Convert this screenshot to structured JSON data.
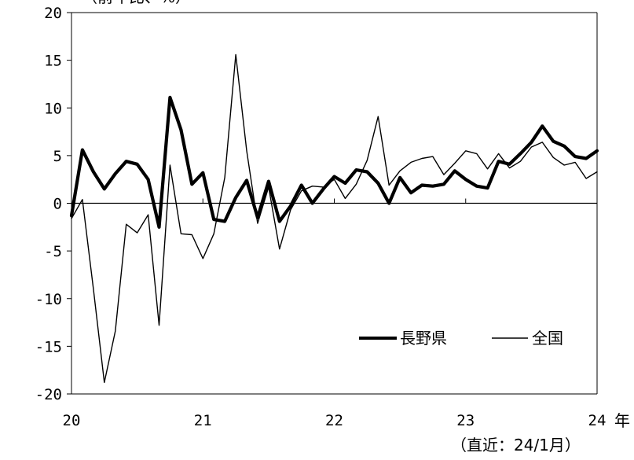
{
  "chart_data": {
    "type": "line",
    "ylabel": "（前年比、%）",
    "x_unit": "年",
    "note": "（直近：24/1月）",
    "ylim": [
      -20,
      20
    ],
    "yticks": [
      "20",
      "15",
      "10",
      "5",
      "0",
      "-5",
      "-10",
      "-15",
      "-20"
    ],
    "xticks": [
      "20",
      "21",
      "22",
      "23",
      "24"
    ],
    "legend_position": "lower-right",
    "series": [
      {
        "name": "長野県",
        "color": "#000000",
        "line_width": "thick",
        "values": [
          -1.3,
          5.6,
          3.3,
          1.5,
          3.1,
          4.4,
          4.1,
          2.5,
          -2.5,
          11.1,
          7.7,
          2.0,
          3.2,
          -1.7,
          -1.9,
          0.6,
          2.4,
          -1.5,
          2.3,
          -1.9,
          -0.3,
          1.9,
          0.0,
          1.5,
          2.8,
          2.1,
          3.5,
          3.3,
          2.1,
          0.0,
          2.7,
          1.1,
          1.9,
          1.8,
          2.0,
          3.4,
          2.5,
          1.8,
          1.6,
          4.4,
          4.1,
          5.2,
          6.4,
          8.1,
          6.5,
          6.0,
          4.9,
          4.7,
          5.5
        ]
      },
      {
        "name": "全国",
        "color": "#000000",
        "line_width": "thin",
        "values": [
          -1.6,
          0.4,
          -9.0,
          -18.8,
          -13.4,
          -2.2,
          -3.1,
          -1.2,
          -12.8,
          4.0,
          -3.2,
          -3.3,
          -5.8,
          -3.2,
          2.7,
          15.6,
          5.5,
          -2.1,
          1.7,
          -4.8,
          -0.7,
          1.3,
          1.8,
          1.7,
          2.5,
          0.5,
          2.0,
          4.5,
          9.1,
          1.9,
          3.4,
          4.3,
          4.7,
          4.9,
          3.0,
          4.2,
          5.5,
          5.2,
          3.6,
          5.2,
          3.7,
          4.4,
          5.9,
          6.4,
          4.8,
          4.0,
          4.3,
          2.6,
          3.3
        ]
      }
    ]
  }
}
